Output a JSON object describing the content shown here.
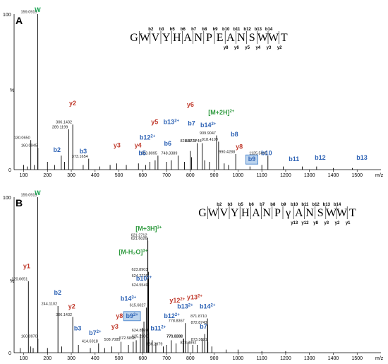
{
  "colors": {
    "b_ion": "#2e63b5",
    "y_ion": "#c0392b",
    "precursor": "#2e9a3e",
    "w_marker": "#18a350",
    "b9_highlight": "#7a2aa0",
    "box_fill": "#bcd4ee",
    "box_stroke": "#3d7cc9"
  },
  "chart_data": [
    {
      "type": "bar",
      "panel": "A",
      "xlabel": "m/z",
      "xlim": [
        60,
        1600
      ],
      "ylim": [
        0,
        100
      ],
      "x_ticks": [
        100,
        200,
        300,
        400,
        500,
        600,
        700,
        800,
        900,
        1000,
        1100,
        1200,
        1300,
        1400,
        1500
      ],
      "y_ticks": [
        "0",
        "100"
      ],
      "y_mid_label": "%",
      "sequence": [
        "G",
        "W",
        "V",
        "Y",
        "H",
        "A",
        "N",
        "P",
        "E",
        "A",
        "N",
        "S",
        "W",
        "W",
        "T"
      ],
      "b_fragment_labels": [
        "b2",
        "b3",
        "b5",
        "b6",
        "b7",
        "b8",
        "b9",
        "b10",
        "b11",
        "b12",
        "b13",
        "b14"
      ],
      "y_fragment_labels": [
        "y8",
        "y6",
        "y5",
        "y4",
        "y3",
        "y2"
      ],
      "peaks": [
        {
          "mz": 130.065,
          "i": 19,
          "label": "130.0650"
        },
        {
          "mz": 159.0915,
          "i": 100,
          "label": "159.0915"
        },
        {
          "mz": 160.0945,
          "i": 14,
          "label": "160.0945"
        },
        {
          "mz": 289.1199,
          "i": 26,
          "label": "289.1199"
        },
        {
          "mz": 306.1432,
          "i": 29,
          "label": "306.1432"
        },
        {
          "mz": 373.1654,
          "i": 7,
          "label": "373.1654"
        },
        {
          "mz": 663.8095,
          "i": 9,
          "label": "663.8095"
        },
        {
          "mz": 748.3389,
          "i": 9,
          "label": "748.3389"
        },
        {
          "mz": 828.3774,
          "i": 17,
          "label": "828.3774"
        },
        {
          "mz": 849.9748,
          "i": 17,
          "label": "849.9748"
        },
        {
          "mz": 909.9047,
          "i": 22,
          "label": "909.9047"
        },
        {
          "mz": 918.4109,
          "i": 18,
          "label": "918.4109"
        },
        {
          "mz": 990.4288,
          "i": 10,
          "label": "990.4288"
        },
        {
          "mz": 1125.5095,
          "i": 9,
          "label": "1125.5095"
        },
        {
          "mz": 100,
          "i": 3
        },
        {
          "mz": 115,
          "i": 2
        },
        {
          "mz": 145,
          "i": 3
        },
        {
          "mz": 200,
          "i": 5
        },
        {
          "mz": 230,
          "i": 3
        },
        {
          "mz": 258,
          "i": 9
        },
        {
          "mz": 272,
          "i": 5
        },
        {
          "mz": 350,
          "i": 3
        },
        {
          "mz": 420,
          "i": 2
        },
        {
          "mz": 463,
          "i": 3
        },
        {
          "mz": 491,
          "i": 4
        },
        {
          "mz": 531,
          "i": 3
        },
        {
          "mz": 582,
          "i": 4
        },
        {
          "mz": 612,
          "i": 3
        },
        {
          "mz": 630,
          "i": 5
        },
        {
          "mz": 652,
          "i": 6
        },
        {
          "mz": 700,
          "i": 5
        },
        {
          "mz": 720,
          "i": 6
        },
        {
          "mz": 775,
          "i": 5
        },
        {
          "mz": 800,
          "i": 12
        },
        {
          "mz": 805,
          "i": 8
        },
        {
          "mz": 860,
          "i": 6
        },
        {
          "mz": 880,
          "i": 5
        },
        {
          "mz": 942,
          "i": 4
        },
        {
          "mz": 960,
          "i": 3
        },
        {
          "mz": 1050,
          "i": 2
        },
        {
          "mz": 1100,
          "i": 3
        },
        {
          "mz": 1190,
          "i": 2
        },
        {
          "mz": 1270,
          "i": 2
        },
        {
          "mz": 1330,
          "i": 2
        },
        {
          "mz": 1400,
          "i": 1
        },
        {
          "mz": 1480,
          "i": 1
        }
      ],
      "annotations": [
        {
          "text": "W",
          "sup": "",
          "kind": "w",
          "mz": 159,
          "ty": 100
        },
        {
          "text": "y2",
          "sup": "",
          "kind": "y",
          "mz": 306,
          "ty": 40
        },
        {
          "text": "b2",
          "sup": "",
          "kind": "b",
          "mz": 240,
          "ty": 10
        },
        {
          "text": "b3",
          "sup": "",
          "kind": "b",
          "mz": 350,
          "ty": 9
        },
        {
          "text": "y3",
          "sup": "",
          "kind": "y",
          "mz": 492,
          "ty": 13
        },
        {
          "text": "y4",
          "sup": "",
          "kind": "y",
          "mz": 580,
          "ty": 13
        },
        {
          "text": "b5",
          "sup": "",
          "kind": "b",
          "mz": 598,
          "ty": 8
        },
        {
          "text": "b6",
          "sup": "",
          "kind": "b",
          "mz": 705,
          "ty": 14
        },
        {
          "text": "b12",
          "sup": "2+",
          "kind": "b",
          "mz": 620,
          "ty": 18
        },
        {
          "text": "y5",
          "sup": "",
          "kind": "y",
          "mz": 650,
          "ty": 28
        },
        {
          "text": "b13",
          "sup": "2+",
          "kind": "b",
          "mz": 720,
          "ty": 28
        },
        {
          "text": "y6",
          "sup": "",
          "kind": "y",
          "mz": 800,
          "ty": 39
        },
        {
          "text": "b7",
          "sup": "",
          "kind": "b",
          "mz": 805,
          "ty": 27
        },
        {
          "text": "b14",
          "sup": "2+",
          "kind": "b",
          "mz": 875,
          "ty": 26
        },
        {
          "text": "[M+2H]",
          "sup": "2+",
          "kind": "p",
          "mz": 930,
          "ty": 34
        },
        {
          "text": "b8",
          "sup": "",
          "kind": "b",
          "mz": 985,
          "ty": 20
        },
        {
          "text": "y8",
          "sup": "",
          "kind": "y",
          "mz": 1005,
          "ty": 12
        },
        {
          "text": "b9",
          "sup": "",
          "kind": "box",
          "mz": 1058,
          "ty": 4
        },
        {
          "text": "b10",
          "sup": "",
          "kind": "b",
          "mz": 1120,
          "ty": 8
        },
        {
          "text": "b11",
          "sup": "",
          "kind": "b",
          "mz": 1235,
          "ty": 4
        },
        {
          "text": "b12",
          "sup": "",
          "kind": "b",
          "mz": 1345,
          "ty": 5
        },
        {
          "text": "b13",
          "sup": "",
          "kind": "b",
          "mz": 1520,
          "ty": 5
        }
      ]
    },
    {
      "type": "bar",
      "panel": "B",
      "xlabel": "m/z",
      "xlim": [
        60,
        1600
      ],
      "ylim": [
        0,
        100
      ],
      "x_ticks": [
        100,
        200,
        300,
        400,
        500,
        600,
        700,
        800,
        900,
        1000,
        1100,
        1200,
        1300,
        1400,
        1500
      ],
      "y_ticks": [
        "0",
        "100"
      ],
      "y_mid_label": "%",
      "sequence": [
        "G",
        "W",
        "V",
        "Y",
        "H",
        "A",
        "N",
        "P",
        "γ",
        "A",
        "N",
        "S",
        "W",
        "W",
        "T"
      ],
      "b_fragment_labels": [
        "b2",
        "b3",
        "b5",
        "b6",
        "b7",
        "b8",
        "b9",
        "b10",
        "b11",
        "b12",
        "b13",
        "b14"
      ],
      "y_fragment_labels": [
        "y13",
        "y12",
        "y8",
        "y3",
        "y2",
        "y1"
      ],
      "peaks": [
        {
          "mz": 120.0651,
          "i": 46,
          "label": "120.0651"
        },
        {
          "mz": 159.0915,
          "i": 100,
          "label": "159.0915"
        },
        {
          "mz": 160.097,
          "i": 9,
          "label": "160.0970"
        },
        {
          "mz": 244.1102,
          "i": 30,
          "label": "244.1102"
        },
        {
          "mz": 306.1432,
          "i": 23,
          "label": "306.1432"
        },
        {
          "mz": 414.6918,
          "i": 6,
          "label": "414.6918"
        },
        {
          "mz": 508.7085,
          "i": 7,
          "label": "508.7085"
        },
        {
          "mz": 572.5898,
          "i": 8,
          "label": "572.5898"
        },
        {
          "mz": 615.6027,
          "i": 29,
          "label": "615.6027"
        },
        {
          "mz": 621.2712,
          "i": 74,
          "label": "621.2712"
        },
        {
          "mz": 621.6026,
          "i": 72,
          "label": "621.6026"
        },
        {
          "mz": 623.8903,
          "i": 52,
          "label": "623.8903"
        },
        {
          "mz": 624.2225,
          "i": 48,
          "label": "624.2225"
        },
        {
          "mz": 624.5549,
          "i": 42,
          "label": "624.5549"
        },
        {
          "mz": 624.8924,
          "i": 13,
          "label": "624.8924"
        },
        {
          "mz": 625.23,
          "i": 9,
          "label": "625.2300"
        },
        {
          "mz": 686.2979,
          "i": 4,
          "label": "686.2979"
        },
        {
          "mz": 770.3232,
          "i": 9,
          "label": "770.3232"
        },
        {
          "mz": 771.8306,
          "i": 9,
          "label": "771.8306"
        },
        {
          "mz": 778.8367,
          "i": 19,
          "label": "778.8367"
        },
        {
          "mz": 828.3892,
          "i": 5,
          "label": "828.3892"
        },
        {
          "mz": 871.871,
          "i": 22,
          "label": "871.8710"
        },
        {
          "mz": 872.8743,
          "i": 18,
          "label": "872.8743"
        },
        {
          "mz": 873.3821,
          "i": 7,
          "label": "873.3821"
        },
        {
          "mz": 85,
          "i": 3
        },
        {
          "mz": 130,
          "i": 4
        },
        {
          "mz": 140,
          "i": 3
        },
        {
          "mz": 200,
          "i": 3
        },
        {
          "mz": 260,
          "i": 4
        },
        {
          "mz": 330,
          "i": 5
        },
        {
          "mz": 380,
          "i": 3
        },
        {
          "mz": 440,
          "i": 3
        },
        {
          "mz": 470,
          "i": 4
        },
        {
          "mz": 540,
          "i": 5
        },
        {
          "mz": 560,
          "i": 7
        },
        {
          "mz": 590,
          "i": 12
        },
        {
          "mz": 600,
          "i": 16
        },
        {
          "mz": 605,
          "i": 20
        },
        {
          "mz": 640,
          "i": 8
        },
        {
          "mz": 655,
          "i": 6
        },
        {
          "mz": 700,
          "i": 5
        },
        {
          "mz": 720,
          "i": 8
        },
        {
          "mz": 740,
          "i": 6
        },
        {
          "mz": 790,
          "i": 7
        },
        {
          "mz": 810,
          "i": 5
        },
        {
          "mz": 850,
          "i": 9
        },
        {
          "mz": 860,
          "i": 12
        },
        {
          "mz": 890,
          "i": 4
        },
        {
          "mz": 950,
          "i": 2
        },
        {
          "mz": 1000,
          "i": 2
        },
        {
          "mz": 1100,
          "i": 1
        },
        {
          "mz": 1200,
          "i": 1
        }
      ],
      "annotations": [
        {
          "text": "W",
          "sup": "",
          "kind": "w",
          "mz": 159,
          "ty": 100
        },
        {
          "text": "y1",
          "sup": "",
          "kind": "y",
          "mz": 113,
          "ty": 53
        },
        {
          "text": "b2",
          "sup": "",
          "kind": "b",
          "mz": 243,
          "ty": 36
        },
        {
          "text": "y2",
          "sup": "",
          "kind": "y",
          "mz": 302,
          "ty": 27
        },
        {
          "text": "b3",
          "sup": "",
          "kind": "b",
          "mz": 327,
          "ty": 13
        },
        {
          "text": "b7",
          "sup": "2+",
          "kind": "b",
          "mz": 400,
          "ty": 10
        },
        {
          "text": "y3",
          "sup": "",
          "kind": "y",
          "mz": 483,
          "ty": 14
        },
        {
          "text": "y8",
          "sup": "2+",
          "kind": "y",
          "mz": 512,
          "ty": 21
        },
        {
          "text": "b9",
          "sup": "2+",
          "kind": "box",
          "mz": 555,
          "ty": 21
        },
        {
          "text": "b14",
          "sup": "3+",
          "kind": "b",
          "mz": 540,
          "ty": 32
        },
        {
          "text": "b10",
          "sup": "2+",
          "kind": "b",
          "mz": 605,
          "ty": 45
        },
        {
          "text": "[M-H₂O]",
          "sup": "3+",
          "kind": "p",
          "mz": 560,
          "ty": 62
        },
        {
          "text": "[M+3H]",
          "sup": "3+",
          "kind": "p",
          "mz": 625,
          "ty": 77
        },
        {
          "text": "b11",
          "sup": "2+",
          "kind": "b",
          "mz": 665,
          "ty": 13
        },
        {
          "text": "b12",
          "sup": "2+",
          "kind": "b",
          "mz": 722,
          "ty": 21
        },
        {
          "text": "y12",
          "sup": "2+",
          "kind": "y",
          "mz": 745,
          "ty": 31
        },
        {
          "text": "b13",
          "sup": "2+",
          "kind": "b",
          "mz": 778,
          "ty": 27
        },
        {
          "text": "y13",
          "sup": "2+",
          "kind": "y",
          "mz": 818,
          "ty": 33
        },
        {
          "text": "b14",
          "sup": "2+",
          "kind": "b",
          "mz": 872,
          "ty": 27
        },
        {
          "text": "b7",
          "sup": "",
          "kind": "b",
          "mz": 855,
          "ty": 14
        }
      ]
    }
  ]
}
